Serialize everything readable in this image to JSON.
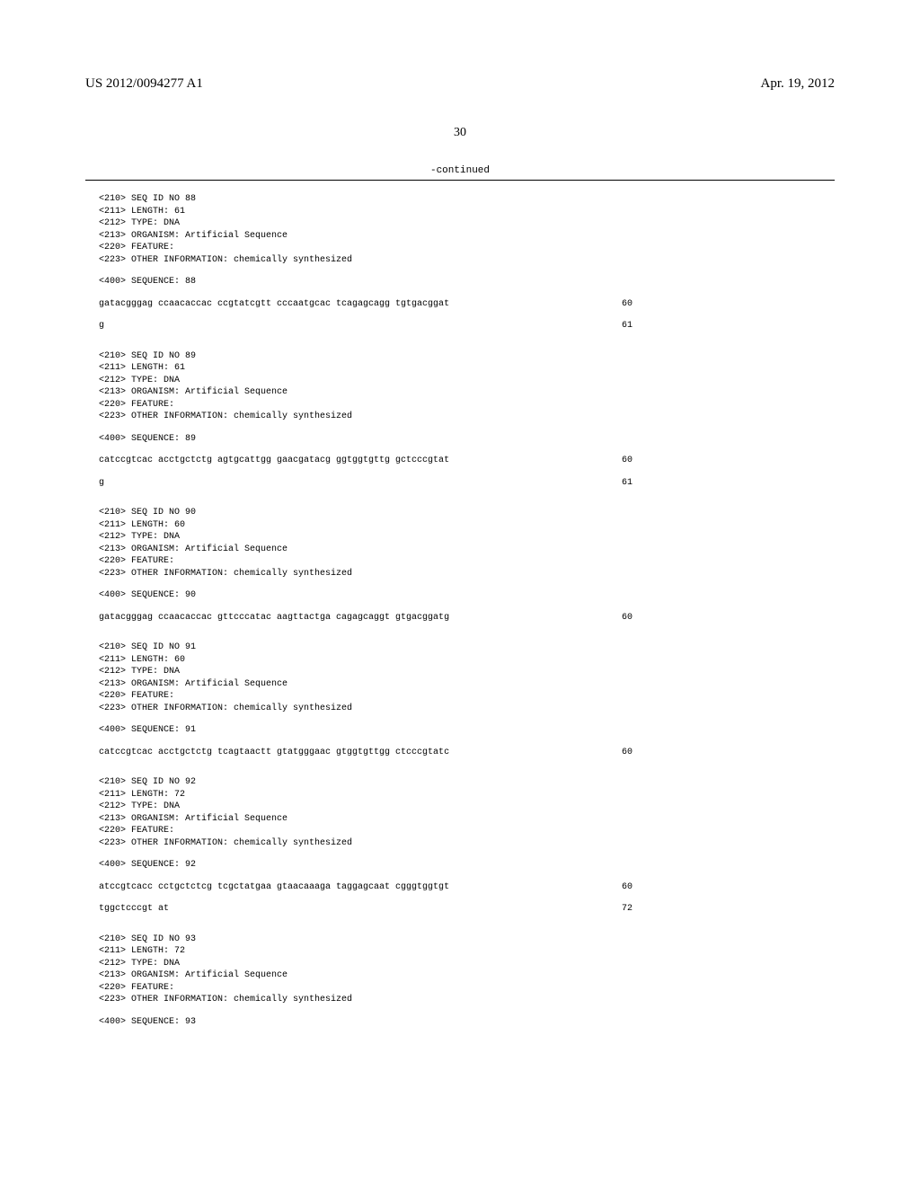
{
  "header": {
    "pub_number": "US 2012/0094277 A1",
    "pub_date": "Apr. 19, 2012"
  },
  "page_number": "30",
  "continued_label": "-continued",
  "sequences": [
    {
      "seq_id": "<210> SEQ ID NO 88",
      "length": "<211> LENGTH: 61",
      "type": "<212> TYPE: DNA",
      "organism": "<213> ORGANISM: Artificial Sequence",
      "feature": "<220> FEATURE:",
      "other_info": "<223> OTHER INFORMATION: chemically synthesized",
      "seq_label": "<400> SEQUENCE: 88",
      "data_rows": [
        {
          "text": "gatacgggag ccaacaccac ccgtatcgtt cccaatgcac tcagagcagg tgtgacggat",
          "num": "60"
        },
        {
          "text": "g",
          "num": "61"
        }
      ]
    },
    {
      "seq_id": "<210> SEQ ID NO 89",
      "length": "<211> LENGTH: 61",
      "type": "<212> TYPE: DNA",
      "organism": "<213> ORGANISM: Artificial Sequence",
      "feature": "<220> FEATURE:",
      "other_info": "<223> OTHER INFORMATION: chemically synthesized",
      "seq_label": "<400> SEQUENCE: 89",
      "data_rows": [
        {
          "text": "catccgtcac acctgctctg agtgcattgg gaacgatacg ggtggtgttg gctcccgtat",
          "num": "60"
        },
        {
          "text": "g",
          "num": "61"
        }
      ]
    },
    {
      "seq_id": "<210> SEQ ID NO 90",
      "length": "<211> LENGTH: 60",
      "type": "<212> TYPE: DNA",
      "organism": "<213> ORGANISM: Artificial Sequence",
      "feature": "<220> FEATURE:",
      "other_info": "<223> OTHER INFORMATION: chemically synthesized",
      "seq_label": "<400> SEQUENCE: 90",
      "data_rows": [
        {
          "text": "gatacgggag ccaacaccac gttcccatac aagttactga cagagcaggt gtgacggatg",
          "num": "60"
        }
      ]
    },
    {
      "seq_id": "<210> SEQ ID NO 91",
      "length": "<211> LENGTH: 60",
      "type": "<212> TYPE: DNA",
      "organism": "<213> ORGANISM: Artificial Sequence",
      "feature": "<220> FEATURE:",
      "other_info": "<223> OTHER INFORMATION: chemically synthesized",
      "seq_label": "<400> SEQUENCE: 91",
      "data_rows": [
        {
          "text": "catccgtcac acctgctctg tcagtaactt gtatgggaac gtggtgttgg ctcccgtatc",
          "num": "60"
        }
      ]
    },
    {
      "seq_id": "<210> SEQ ID NO 92",
      "length": "<211> LENGTH: 72",
      "type": "<212> TYPE: DNA",
      "organism": "<213> ORGANISM: Artificial Sequence",
      "feature": "<220> FEATURE:",
      "other_info": "<223> OTHER INFORMATION: chemically synthesized",
      "seq_label": "<400> SEQUENCE: 92",
      "data_rows": [
        {
          "text": "atccgtcacc cctgctctcg tcgctatgaa gtaacaaaga taggagcaat cgggtggtgt",
          "num": "60"
        },
        {
          "text": "tggctcccgt at",
          "num": "72"
        }
      ]
    },
    {
      "seq_id": "<210> SEQ ID NO 93",
      "length": "<211> LENGTH: 72",
      "type": "<212> TYPE: DNA",
      "organism": "<213> ORGANISM: Artificial Sequence",
      "feature": "<220> FEATURE:",
      "other_info": "<223> OTHER INFORMATION: chemically synthesized",
      "seq_label": "<400> SEQUENCE: 93",
      "data_rows": []
    }
  ]
}
